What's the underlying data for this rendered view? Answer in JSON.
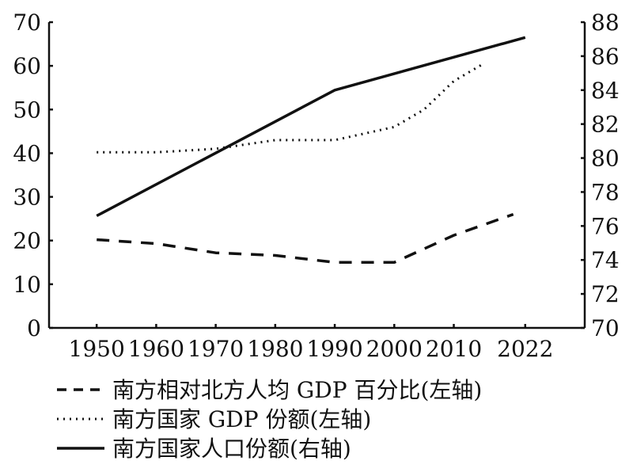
{
  "chart_data": {
    "type": "line",
    "title": "",
    "xlabel": "",
    "ylabel_left": "",
    "ylabel_right": "",
    "x_ticks": [
      1950,
      1960,
      1970,
      1980,
      1990,
      2000,
      2010,
      2022
    ],
    "y_left_ticks": [
      0,
      10,
      20,
      30,
      40,
      50,
      60,
      70
    ],
    "y_right_ticks": [
      70,
      72,
      74,
      76,
      78,
      80,
      82,
      84,
      86,
      88
    ],
    "xlim": [
      1942,
      2032
    ],
    "ylim_left": [
      0,
      70
    ],
    "ylim_right": [
      70,
      88
    ],
    "grid": false,
    "legend_position": "bottom",
    "series": [
      {
        "name": "南方相对北方人均 GDP 百分比(左轴)",
        "axis": "left",
        "style": "dashed",
        "color": "#111111",
        "points": [
          {
            "x": 1950,
            "y": 20.2
          },
          {
            "x": 1960,
            "y": 19.3
          },
          {
            "x": 1970,
            "y": 17.2
          },
          {
            "x": 1980,
            "y": 16.6
          },
          {
            "x": 1990,
            "y": 15.0
          },
          {
            "x": 2000,
            "y": 15.0
          },
          {
            "x": 2010,
            "y": 21.2
          },
          {
            "x": 2020,
            "y": 26.0
          }
        ]
      },
      {
        "name": "南方国家 GDP 份额(左轴)",
        "axis": "left",
        "style": "dotted",
        "color": "#111111",
        "points": [
          {
            "x": 1950,
            "y": 40.2
          },
          {
            "x": 1960,
            "y": 40.2
          },
          {
            "x": 1970,
            "y": 41.0
          },
          {
            "x": 1980,
            "y": 43.0
          },
          {
            "x": 1990,
            "y": 43.0
          },
          {
            "x": 2000,
            "y": 46.0
          },
          {
            "x": 2005,
            "y": 50.0
          },
          {
            "x": 2010,
            "y": 56.5
          },
          {
            "x": 2015,
            "y": 60.5
          }
        ]
      },
      {
        "name": "南方国家人口份额(右轴)",
        "axis": "right",
        "style": "solid",
        "color": "#111111",
        "points": [
          {
            "x": 1950,
            "y": 76.6
          },
          {
            "x": 1990,
            "y": 84.0
          },
          {
            "x": 2022,
            "y": 87.1
          }
        ]
      }
    ]
  }
}
